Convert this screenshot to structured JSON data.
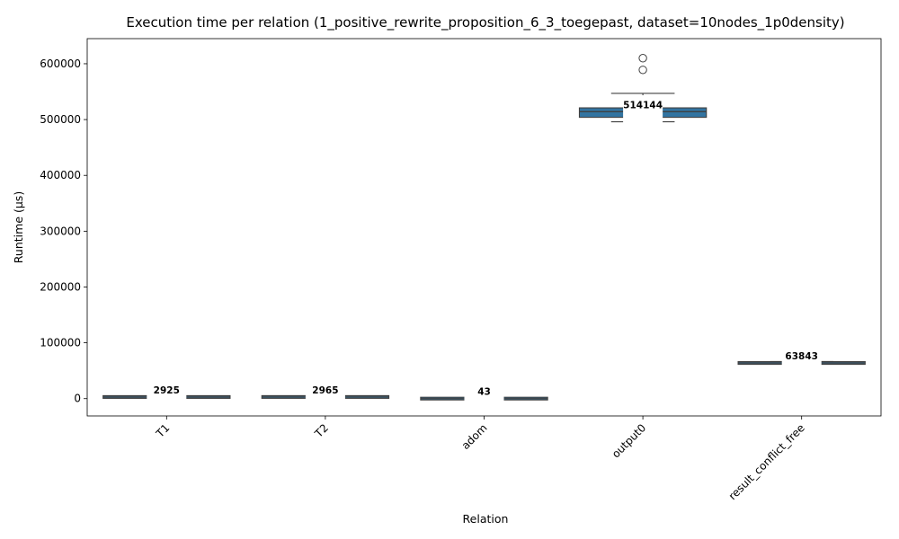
{
  "chart_data": {
    "type": "box",
    "title": "Execution time per relation (1_positive_rewrite_proposition_6_3_toegepast, dataset=10nodes_1p0density)",
    "xlabel": "Relation",
    "ylabel": "Runtime (µs)",
    "ylim": [
      -31000,
      645000
    ],
    "yticks": [
      0,
      100000,
      200000,
      300000,
      400000,
      500000,
      600000
    ],
    "ytick_labels": [
      "0",
      "100000",
      "200000",
      "300000",
      "400000",
      "500000",
      "600000"
    ],
    "categories": [
      "T1",
      "T2",
      "adom",
      "output0",
      "result_conflict_free"
    ],
    "grid": false,
    "box_color": "#3274a1",
    "boxes": [
      {
        "category": "T1",
        "min": 2500,
        "q1": 2800,
        "median": 2925,
        "q3": 3100,
        "max": 3500,
        "outliers": [],
        "median_label": "2925"
      },
      {
        "category": "T2",
        "min": 2500,
        "q1": 2850,
        "median": 2965,
        "q3": 3150,
        "max": 3600,
        "outliers": [],
        "median_label": "2965"
      },
      {
        "category": "adom",
        "min": 30,
        "q1": 38,
        "median": 43,
        "q3": 50,
        "max": 60,
        "outliers": [],
        "median_label": "43"
      },
      {
        "category": "output0",
        "min": 496000,
        "q1": 504000,
        "median": 514144,
        "q3": 521000,
        "max": 547000,
        "outliers": [
          589000,
          610000
        ],
        "median_label": "514144"
      },
      {
        "category": "result_conflict_free",
        "min": 62500,
        "q1": 63300,
        "median": 63843,
        "q3": 65500,
        "max": 66500,
        "outliers": [],
        "median_label": "63843"
      }
    ]
  }
}
